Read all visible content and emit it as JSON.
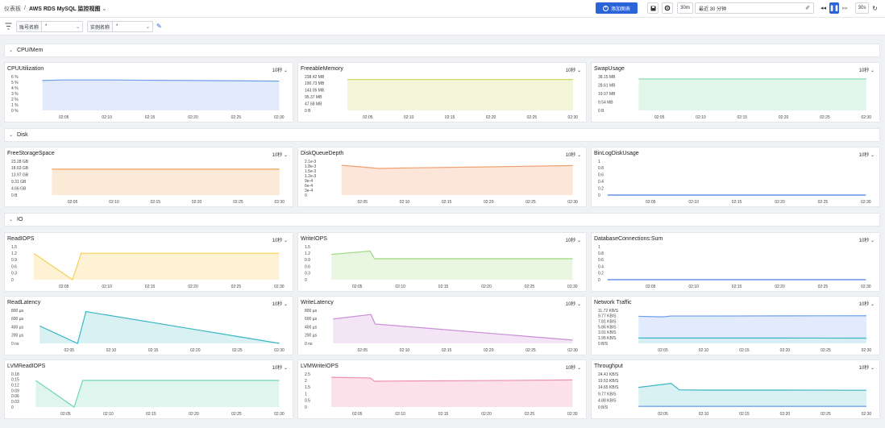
{
  "header": {
    "breadcrumb_root": "仪表板",
    "title": "AWS RDS MySQL 监控视图",
    "add_chart_label": "添加图表",
    "range_short": "30m",
    "time_range": "最近 30 分钟",
    "refresh_interval": "30s"
  },
  "filters": [
    {
      "label": "账号名称",
      "value": "*"
    },
    {
      "label": "实例名称",
      "value": "*"
    }
  ],
  "sections": [
    "CPU/Mem",
    "Disk",
    "IO"
  ],
  "x_ticks": [
    "02:05",
    "02:10",
    "02:15",
    "02:20",
    "02:25",
    "02:30"
  ],
  "panels": [
    {
      "title": "CPUUtilization",
      "interval": "10秒",
      "color": "#6d9eeb",
      "fill": "#dce7fb",
      "y_ticks": [
        "6 %",
        "5 %",
        "4 %",
        "3 %",
        "2 %",
        "1 %",
        "0 %"
      ],
      "ylim": [
        0,
        6
      ],
      "series": [
        {
          "x": [
            2.5,
            5.0,
            10.0,
            15.0,
            20.0,
            25.0,
            30.0
          ],
          "y": [
            5.3,
            5.4,
            5.4,
            5.35,
            5.3,
            5.25,
            5.2
          ]
        }
      ]
    },
    {
      "title": "FreeableMemory",
      "interval": "10秒",
      "color": "#d4d86a",
      "fill": "#f1f3d2",
      "y_ticks": [
        "238.42 MB",
        "190.73 MB",
        "143.05 MB",
        "95.37 MB",
        "47.68 MB",
        "0 B"
      ],
      "ylim": [
        0,
        238.42
      ],
      "series": [
        {
          "x": [
            2.5,
            10.0,
            20.0,
            30.0
          ],
          "y": [
            218,
            218,
            218,
            218
          ]
        }
      ]
    },
    {
      "title": "SwapUsage",
      "interval": "10秒",
      "color": "#7ed6a8",
      "fill": "#dcf5e7",
      "y_ticks": [
        "38.15 MB",
        "28.61 MB",
        "19.07 MB",
        "9.54 MB",
        "0 B"
      ],
      "ylim": [
        0,
        38.15
      ],
      "series": [
        {
          "x": [
            2.5,
            10.0,
            20.0,
            30.0
          ],
          "y": [
            35.5,
            35.5,
            35.5,
            35.5
          ]
        }
      ]
    },
    {
      "title": "FreeStorageSpace",
      "interval": "10秒",
      "color": "#f0a35a",
      "fill": "#fce6d2",
      "y_ticks": [
        "23.28 GB",
        "18.63 GB",
        "13.97 GB",
        "9.31 GB",
        "4.66 GB",
        "0 B"
      ],
      "ylim": [
        0,
        23.28
      ],
      "series": [
        {
          "x": [
            2.5,
            10.0,
            20.0,
            30.0
          ],
          "y": [
            17.8,
            17.8,
            17.8,
            17.8
          ]
        }
      ]
    },
    {
      "title": "DiskQueueDepth",
      "interval": "10秒",
      "color": "#f0a070",
      "fill": "#fbe2d3",
      "y_ticks": [
        "2.1e-3",
        "1.8e-3",
        "1.5e-3",
        "1.2e-3",
        "9e-4",
        "6e-4",
        "3e-4",
        "0"
      ],
      "ylim": [
        0,
        0.0021
      ],
      "series": [
        {
          "x": [
            2.5,
            7.0,
            10.0,
            20.0,
            30.0
          ],
          "y": [
            0.00185,
            0.00165,
            0.00168,
            0.00175,
            0.00183
          ]
        }
      ]
    },
    {
      "title": "BinLogDiskUsage",
      "interval": "10秒",
      "color": "#4a7fe0",
      "fill": "#dce7fb",
      "y_ticks": [
        "1",
        "0.8",
        "0.6",
        "0.4",
        "0.2",
        "0"
      ],
      "ylim": [
        0,
        1
      ],
      "series": [
        {
          "x": [
            0,
            10,
            20,
            30
          ],
          "y": [
            0,
            0,
            0,
            0
          ]
        }
      ]
    },
    {
      "title": "ReadIOPS",
      "interval": "10秒",
      "color": "#f5cf5a",
      "fill": "#fdf1cc",
      "y_ticks": [
        "1.5",
        "1.2",
        "0.9",
        "0.6",
        "0.3",
        "0"
      ],
      "ylim": [
        0,
        1.5
      ],
      "series": [
        {
          "x": [
            1.5,
            6.0,
            7.0,
            10.0,
            20.0,
            30.0
          ],
          "y": [
            1.2,
            0.0,
            1.2,
            1.2,
            1.2,
            1.2
          ]
        }
      ]
    },
    {
      "title": "WriteIOPS",
      "interval": "10秒",
      "color": "#9ed882",
      "fill": "#e5f5dc",
      "y_ticks": [
        "1.5",
        "1.2",
        "0.9",
        "0.6",
        "0.3",
        "0"
      ],
      "ylim": [
        0,
        1.5
      ],
      "series": [
        {
          "x": [
            2.0,
            6.5,
            7.0,
            10.0,
            20.0,
            30.0
          ],
          "y": [
            1.15,
            1.3,
            0.95,
            0.95,
            0.95,
            0.95
          ]
        }
      ]
    },
    {
      "title": "DatabaseConnections:Sum",
      "interval": "10秒",
      "color": "#4a7fe0",
      "fill": "#dce7fb",
      "y_ticks": [
        "1",
        "0.8",
        "0.6",
        "0.4",
        "0.2",
        "0"
      ],
      "ylim": [
        0,
        1
      ],
      "series": [
        {
          "x": [
            0,
            10,
            20,
            30
          ],
          "y": [
            0,
            0,
            0,
            0
          ]
        }
      ]
    },
    {
      "title": "ReadLatency",
      "interval": "10秒",
      "color": "#39b6c4",
      "fill": "#d4eff2",
      "y_ticks": [
        "800 µs",
        "600 µs",
        "400 µs",
        "200 µs",
        "0 ns"
      ],
      "ylim": [
        0,
        800
      ],
      "series": [
        {
          "x": [
            1.5,
            6.0,
            7.0,
            30.0
          ],
          "y": [
            420,
            0,
            770,
            0
          ]
        }
      ]
    },
    {
      "title": "WriteLatency",
      "interval": "10秒",
      "color": "#c98fd6",
      "fill": "#f1e1f5",
      "y_ticks": [
        "800 µs",
        "600 µs",
        "400 µs",
        "200 µs",
        "0 ns"
      ],
      "ylim": [
        0,
        800
      ],
      "series": [
        {
          "x": [
            1.5,
            6.0,
            6.5,
            30.0
          ],
          "y": [
            590,
            700,
            470,
            80
          ]
        }
      ]
    },
    {
      "title": "Network Traffic",
      "interval": "10秒",
      "color": "#6d9eeb",
      "fill": "#dce7fb",
      "y_ticks": [
        "11.72 KB/S",
        "9.77 KB/S",
        "7.81 KB/S",
        "5.86 KB/S",
        "3.91 KB/S",
        "1.95 KB/S",
        "0 B/S"
      ],
      "ylim": [
        0,
        11.72
      ],
      "series": [
        {
          "x": [
            2.0,
            5.0,
            6.0,
            10.0,
            20.0,
            30.0
          ],
          "y": [
            9.6,
            9.4,
            9.7,
            9.7,
            9.75,
            9.8
          ]
        },
        {
          "x": [
            2.0,
            10.0,
            20.0,
            30.0
          ],
          "y": [
            1.9,
            1.9,
            1.9,
            1.85
          ],
          "color": "#39b6c4",
          "fill": "#d4eff2"
        }
      ]
    },
    {
      "title": "LVMReadIOPS",
      "interval": "10秒",
      "color": "#6fd6b0",
      "fill": "#d8f4ea",
      "y_ticks": [
        "0.18",
        "0.15",
        "0.12",
        "0.09",
        "0.06",
        "0.03",
        "0"
      ],
      "ylim": [
        0,
        0.18
      ],
      "series": [
        {
          "x": [
            1.5,
            6.0,
            7.0,
            10.0,
            20.0,
            30.0
          ],
          "y": [
            0.145,
            0.0,
            0.145,
            0.145,
            0.145,
            0.145
          ]
        }
      ]
    },
    {
      "title": "LVMWriteIOPS",
      "interval": "10秒",
      "color": "#ef8fb0",
      "fill": "#fbdbe6",
      "y_ticks": [
        "2.5",
        "2",
        "1.5",
        "1",
        "0.5",
        "0"
      ],
      "ylim": [
        0,
        2.5
      ],
      "series": [
        {
          "x": [
            2.0,
            6.5,
            7.0,
            10.0,
            20.0,
            30.0
          ],
          "y": [
            2.25,
            2.2,
            1.95,
            1.97,
            2.0,
            2.05
          ]
        }
      ]
    },
    {
      "title": "Throughput",
      "interval": "10秒",
      "color": "#39b6c4",
      "fill": "#d4eff2",
      "y_ticks": [
        "24.41 KB/S",
        "19.53 KB/S",
        "14.65 KB/S",
        "9.77 KB/S",
        "4.88 KB/S",
        "0 B/S"
      ],
      "ylim": [
        0,
        24.41
      ],
      "series": [
        {
          "x": [
            2.0,
            6.0,
            7.0,
            10.0,
            20.0,
            30.0
          ],
          "y": [
            14.5,
            17.5,
            12.7,
            12.5,
            12.5,
            12.4
          ]
        },
        {
          "x": [
            2.0,
            10.0,
            20.0,
            30.0
          ],
          "y": [
            0.5,
            0.5,
            0.5,
            0.5
          ],
          "color": "#6d9eeb",
          "fill": "#dce7fb"
        }
      ]
    }
  ]
}
